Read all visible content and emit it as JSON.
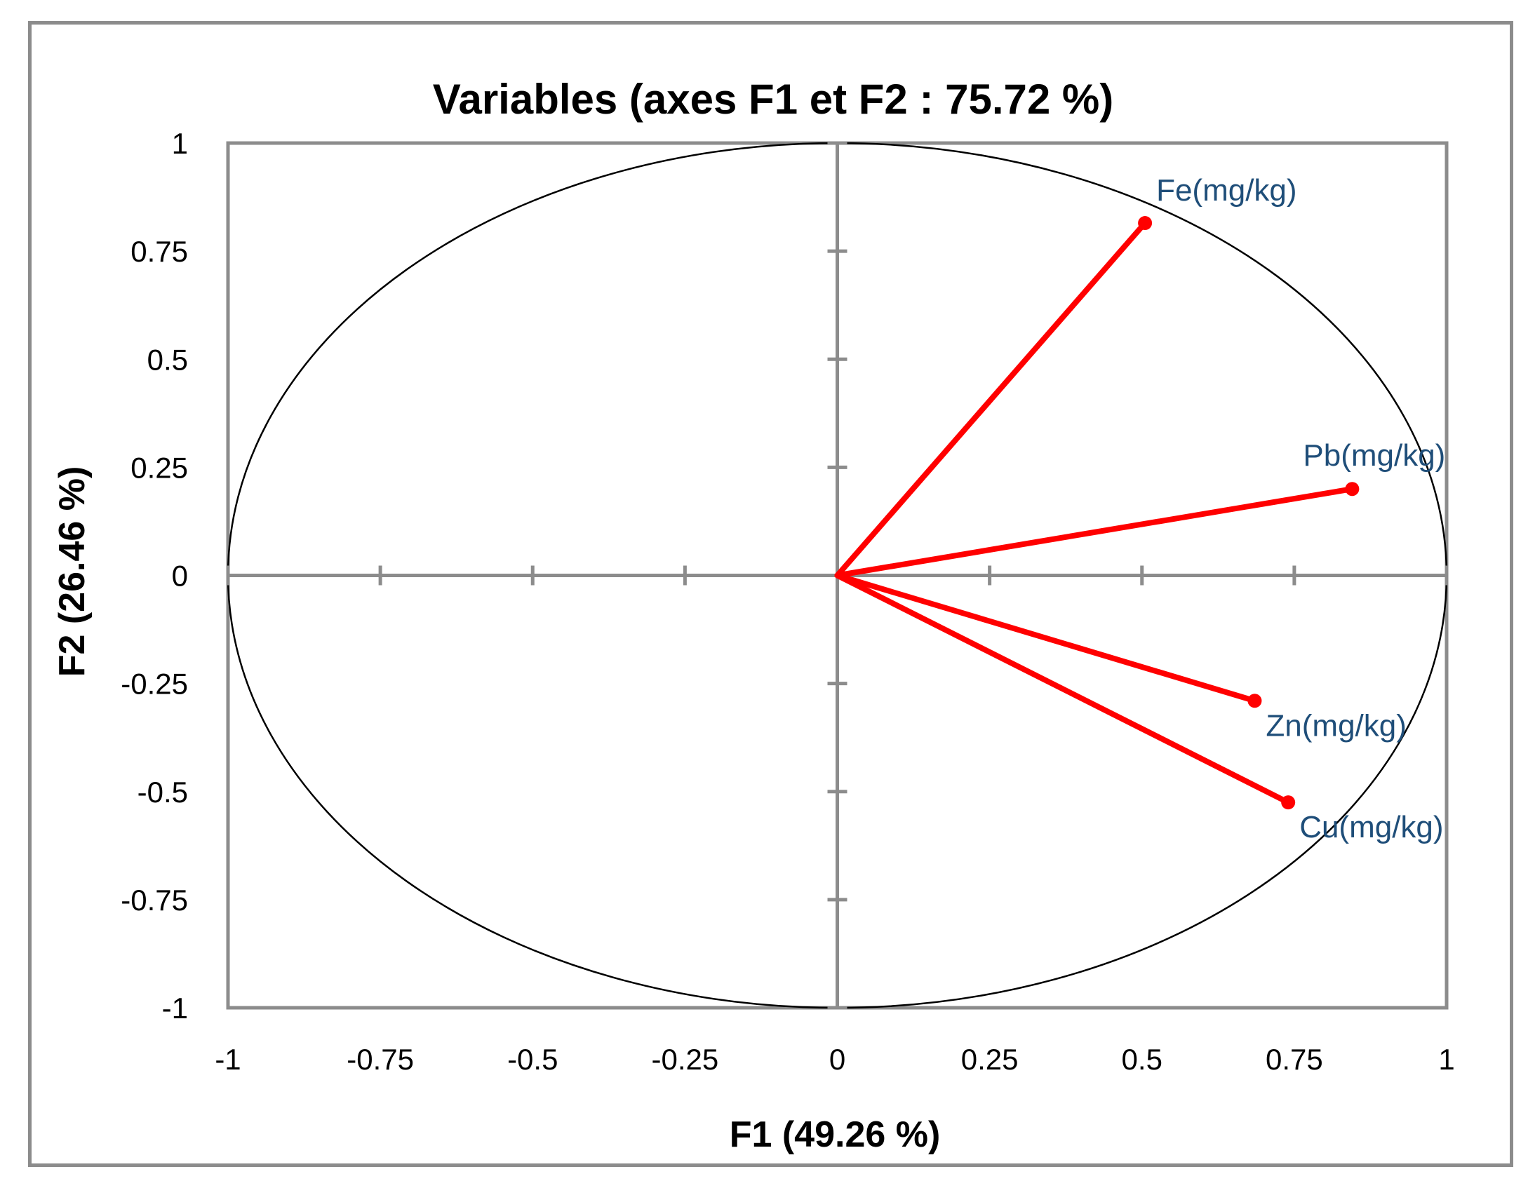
{
  "chart_data": {
    "type": "scatter",
    "subtype": "pca-correlation-circle",
    "title": "Variables (axes F1 et F2 : 75.72 %)",
    "xlabel": "F1 (49.26 %)",
    "ylabel": "F2 (26.46 %)",
    "xlim": [
      -1,
      1
    ],
    "ylim": [
      -1,
      1
    ],
    "xticks": [
      "-1",
      "-0.75",
      "-0.5",
      "-0.25",
      "0",
      "0.25",
      "0.5",
      "0.75",
      "1"
    ],
    "yticks": [
      "1",
      "0.75",
      "0.5",
      "0.25",
      "0",
      "-0.25",
      "-0.5",
      "-0.75",
      "-1"
    ],
    "xtick_values": [
      -1,
      -0.75,
      -0.5,
      -0.25,
      0,
      0.25,
      0.5,
      0.75,
      1
    ],
    "ytick_values": [
      1,
      0.75,
      0.5,
      0.25,
      0,
      -0.25,
      -0.5,
      -0.75,
      -1
    ],
    "grid": false,
    "unit_circle": true,
    "legend": "none",
    "series_color": "#ff0000",
    "label_color": "#1f4e79",
    "axis_color": "#8c8c8c",
    "points": [
      {
        "label": "Fe(mg/kg)",
        "x": 0.505,
        "y": 0.815
      },
      {
        "label": "Pb(mg/kg)",
        "x": 0.845,
        "y": 0.2
      },
      {
        "label": "Zn(mg/kg)",
        "x": 0.685,
        "y": -0.29
      },
      {
        "label": "Cu(mg/kg)",
        "x": 0.74,
        "y": -0.525
      }
    ]
  }
}
